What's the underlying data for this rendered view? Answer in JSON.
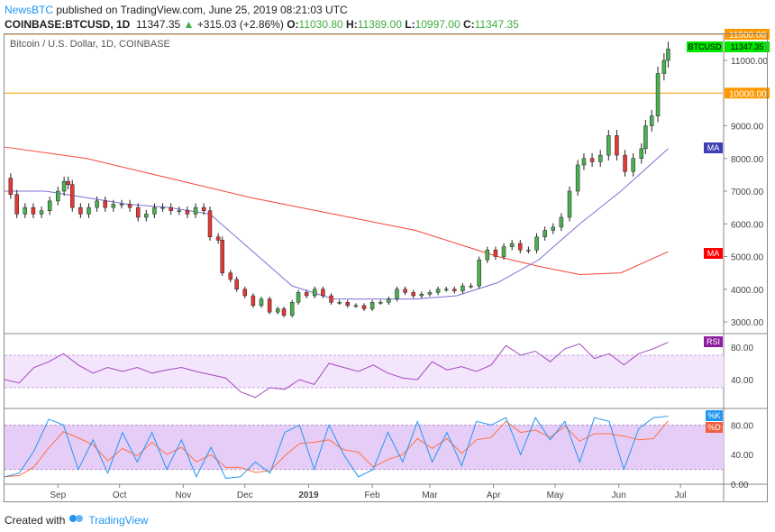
{
  "header": {
    "publisher": "NewsBTC",
    "published_text": "published on TradingView.com, June 25, 2019 08:21:03 UTC",
    "symbol": "COINBASE:BTCUSD, 1D",
    "last": "11347.35",
    "change": "+315.03 (+2.86%)",
    "o_label": "O:",
    "o": "11030.80",
    "h_label": "H:",
    "h": "11389.00",
    "l_label": "L:",
    "l": "10997.00",
    "c_label": "C:",
    "c": "11347.35"
  },
  "footer": {
    "created_with": "Created with",
    "brand": "TradingView"
  },
  "colors": {
    "up": "#4caf50",
    "down": "#e53935",
    "ma_long": "#f44336",
    "ma_short": "#7e6fd8",
    "rsi": "#a24bbf",
    "k": "#2196f3",
    "d": "#ff7043",
    "level": "#ff9800",
    "brand": "#2196f3"
  },
  "chart_data": {
    "type": "candlestick",
    "title": "Bitcoin / U.S. Dollar, 1D, COINBASE",
    "price_tag": {
      "label": "BTCUSD",
      "value": "11347.35"
    },
    "levels": [
      {
        "value": 11500,
        "label": "11500.00"
      },
      {
        "value": 10000,
        "label": "10000.00"
      }
    ],
    "ylim": [
      2900,
      11500
    ],
    "y_ticks": [
      {
        "v": 11000,
        "t": "11000.00"
      },
      {
        "v": 9000,
        "t": "9000.00"
      },
      {
        "v": 8000,
        "t": "8000.00"
      },
      {
        "v": 7000,
        "t": "7000.00"
      },
      {
        "v": 6000,
        "t": "6000.00"
      },
      {
        "v": 5000,
        "t": "5000.00"
      },
      {
        "v": 4000,
        "t": "4000.00"
      },
      {
        "v": 3000,
        "t": "3000.00"
      }
    ],
    "x_ticks": [
      {
        "day": 26,
        "t": "Sep"
      },
      {
        "day": 56,
        "t": "Oct"
      },
      {
        "day": 87,
        "t": "Nov"
      },
      {
        "day": 117,
        "t": "Dec"
      },
      {
        "day": 148,
        "t": "2019"
      },
      {
        "day": 179,
        "t": "Feb"
      },
      {
        "day": 207,
        "t": "Mar"
      },
      {
        "day": 238,
        "t": "Apr"
      },
      {
        "day": 268,
        "t": "May"
      },
      {
        "day": 299,
        "t": "Jun"
      },
      {
        "day": 329,
        "t": "Jul"
      }
    ],
    "x_days": [
      0,
      3,
      6,
      10,
      14,
      18,
      22,
      26,
      29,
      31,
      33,
      37,
      41,
      45,
      49,
      53,
      57,
      61,
      65,
      69,
      73,
      77,
      81,
      85,
      89,
      93,
      97,
      100,
      104,
      106,
      110,
      113,
      117,
      121,
      125,
      129,
      133,
      136,
      140,
      143,
      147,
      151,
      155,
      159,
      163,
      167,
      171,
      175,
      179,
      183,
      187,
      191,
      195,
      199,
      203,
      207,
      211,
      215,
      219,
      223,
      227,
      231,
      235,
      239,
      243,
      247,
      251,
      255,
      259,
      263,
      267,
      271,
      275,
      279,
      282,
      286,
      290,
      294,
      298,
      302,
      306,
      310,
      312,
      315,
      318,
      321,
      323
    ],
    "close": [
      7400,
      6900,
      6300,
      6500,
      6300,
      6400,
      6700,
      7000,
      7300,
      7200,
      6500,
      6300,
      6500,
      6700,
      6500,
      6600,
      6600,
      6500,
      6200,
      6300,
      6500,
      6500,
      6400,
      6400,
      6300,
      6500,
      6400,
      5600,
      5500,
      4500,
      4300,
      4000,
      3800,
      3500,
      3700,
      3300,
      3400,
      3200,
      3600,
      3900,
      3800,
      4000,
      3800,
      3600,
      3600,
      3500,
      3500,
      3400,
      3600,
      3600,
      3700,
      4000,
      3900,
      3800,
      3850,
      3900,
      4000,
      4000,
      3950,
      4100,
      4100,
      4900,
      5200,
      5000,
      5300,
      5400,
      5200,
      5200,
      5600,
      5800,
      5900,
      6200,
      7000,
      7800,
      8000,
      7900,
      8100,
      8700,
      8100,
      7600,
      8000,
      8300,
      9000,
      9300,
      10600,
      11000,
      11347
    ],
    "ma_long": {
      "label": "MA",
      "days": [
        0,
        40,
        80,
        120,
        160,
        200,
        240,
        260,
        280,
        300,
        323
      ],
      "values": [
        8350,
        8000,
        7400,
        6800,
        6300,
        5800,
        5000,
        4700,
        4450,
        4500,
        5150
      ]
    },
    "ma_short": {
      "label": "MA",
      "days": [
        0,
        20,
        40,
        60,
        80,
        100,
        120,
        140,
        160,
        180,
        200,
        220,
        240,
        260,
        280,
        300,
        323
      ],
      "values": [
        7000,
        7000,
        6800,
        6600,
        6500,
        6300,
        5200,
        4100,
        3700,
        3700,
        3700,
        3800,
        4200,
        4900,
        6000,
        7000,
        8300
      ]
    },
    "rsi": {
      "label": "RSI",
      "ticks": [
        {
          "v": 80,
          "t": "80.00"
        },
        {
          "v": 40,
          "t": "40.00"
        }
      ],
      "band": [
        30,
        70
      ],
      "values": [
        40,
        36,
        55,
        62,
        72,
        58,
        48,
        55,
        50,
        55,
        48,
        52,
        55,
        50,
        46,
        42,
        25,
        18,
        30,
        28,
        40,
        34,
        60,
        55,
        50,
        58,
        48,
        42,
        40,
        62,
        52,
        56,
        50,
        58,
        82,
        70,
        75,
        62,
        78,
        84,
        66,
        72,
        58,
        72,
        78,
        86
      ]
    },
    "stoch": {
      "k_label": "%K",
      "d_label": "%D",
      "ticks": [
        {
          "v": 80,
          "t": "80.00"
        },
        {
          "v": 40,
          "t": "40.00"
        },
        {
          "v": 0,
          "t": "0.00"
        }
      ],
      "band": [
        20,
        80
      ],
      "k": [
        10,
        15,
        45,
        88,
        80,
        20,
        60,
        15,
        70,
        30,
        70,
        20,
        60,
        10,
        50,
        8,
        10,
        30,
        15,
        70,
        80,
        20,
        80,
        40,
        10,
        20,
        70,
        30,
        85,
        30,
        70,
        25,
        85,
        80,
        90,
        40,
        90,
        60,
        85,
        30,
        90,
        85,
        20,
        75,
        90,
        92
      ]
    }
  }
}
